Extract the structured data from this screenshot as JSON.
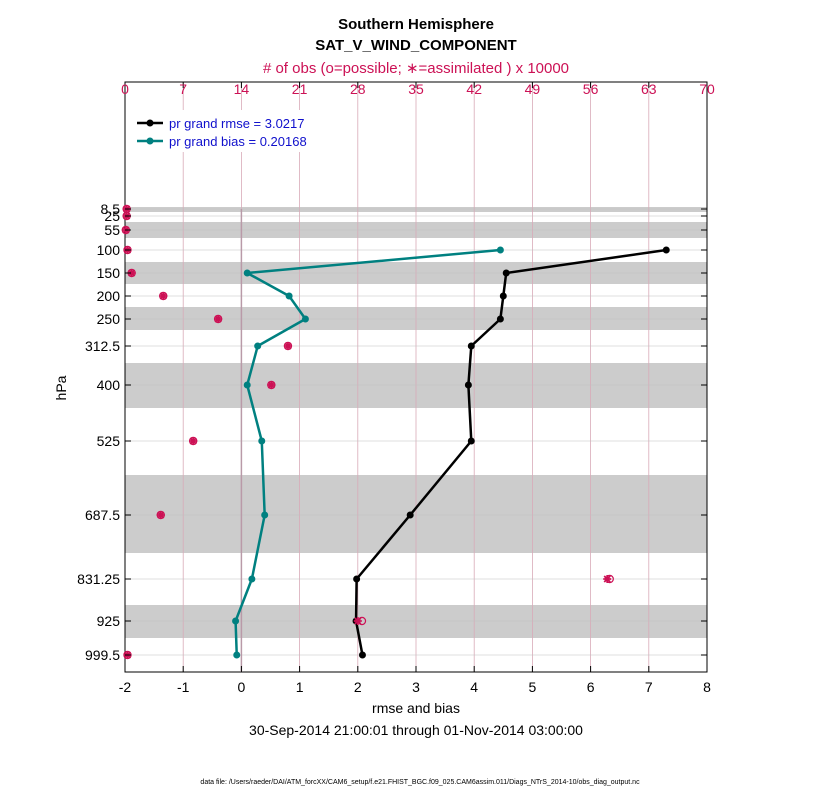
{
  "chart_data": {
    "type": "line",
    "title": "Southern Hemisphere",
    "subtitle": "SAT_V_WIND_COMPONENT",
    "top_axis_label": "# of obs (o=possible; ∗=assimilated ) x 10000",
    "xlabel": "rmse and bias",
    "ylabel": "hPa",
    "date_range": "30-Sep-2014 21:00:01 through 01-Nov-2014 03:00:00",
    "footer": "data file: /Users/raeder/DAI/ATM_forcXX/CAM6_setup/f.e21.FHIST_BGC.f09_025.CAM6assim.011/Diags_NTrS_2014-10/obs_diag_output.nc",
    "xlim": [
      -2,
      8
    ],
    "x_ticks": [
      "-2",
      "-1",
      "0",
      "1",
      "2",
      "3",
      "4",
      "5",
      "6",
      "7",
      "8"
    ],
    "top_xlim": [
      0,
      70
    ],
    "top_ticks": [
      "0",
      "7",
      "14",
      "21",
      "28",
      "35",
      "42",
      "49",
      "56",
      "63",
      "70"
    ],
    "levels": [
      8.5,
      25,
      55,
      100,
      150,
      200,
      250,
      312.5,
      400,
      525,
      687.5,
      831.25,
      925,
      999.5
    ],
    "level_labels": [
      "8.5",
      "25",
      "55",
      "100",
      "150",
      "200",
      "250",
      "312.5",
      "400",
      "525",
      "687.5",
      "831.25",
      "925",
      "999.5"
    ],
    "series": [
      {
        "name": "rmse",
        "legend": "pr grand rmse = 3.0217",
        "color": "#000000",
        "levels": [
          100,
          150,
          200,
          250,
          312.5,
          400,
          525,
          687.5,
          831.25,
          925,
          999.5
        ],
        "values": [
          7.3,
          4.55,
          4.5,
          4.45,
          3.95,
          3.9,
          3.95,
          2.9,
          1.98,
          1.97,
          2.08
        ]
      },
      {
        "name": "bias",
        "legend": "pr grand bias = 0.20168",
        "color": "#008080",
        "levels": [
          100,
          150,
          200,
          250,
          312.5,
          400,
          525,
          687.5,
          831.25,
          925,
          999.5
        ],
        "values": [
          4.45,
          0.1,
          0.82,
          1.1,
          0.28,
          0.1,
          0.35,
          0.4,
          0.18,
          -0.1,
          -0.08
        ]
      }
    ],
    "obs_possible": {
      "color": "#cc1155",
      "levels": [
        8.5,
        25,
        55,
        100,
        150,
        200,
        250,
        312.5,
        400,
        525,
        687.5,
        831.25,
        925,
        999.5
      ],
      "values": [
        0.2,
        0.2,
        0.1,
        0.3,
        0.8,
        4.6,
        11.2,
        19.6,
        17.6,
        8.2,
        4.3,
        58.3,
        28.5,
        0.3
      ]
    },
    "obs_assimilated": {
      "color": "#cc1155",
      "levels": [
        8.5,
        25,
        55,
        100,
        150,
        200,
        250,
        312.5,
        400,
        525,
        687.5,
        831.25,
        925,
        999.5
      ],
      "values": [
        0.2,
        0.2,
        0.1,
        0.3,
        0.8,
        4.6,
        11.2,
        19.6,
        17.6,
        8.2,
        4.3,
        58.0,
        28.0,
        0.3
      ]
    }
  }
}
